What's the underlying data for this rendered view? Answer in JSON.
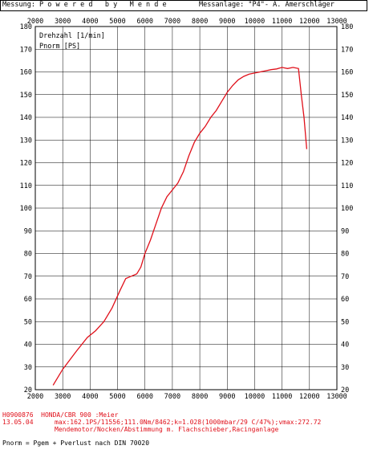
{
  "header": {
    "messung_label": "Messung:",
    "powered_by": "P o w e r e d   b y   M e n d e",
    "messanlage": "Messanlage: \"P4\"- A. Amerschläger"
  },
  "chart_data": {
    "type": "line",
    "title": "",
    "xlabel": "Drehzahl [1/min]",
    "ylabel": "Pnorm [PS]",
    "xlim": [
      2000,
      13000
    ],
    "ylim": [
      20,
      180
    ],
    "x_ticks": [
      "2000",
      "3000",
      "4000",
      "5000",
      "6000",
      "7000",
      "8000",
      "9000",
      "10000",
      "11000",
      "12000",
      "13000"
    ],
    "y_ticks": [
      "20",
      "30",
      "40",
      "50",
      "60",
      "70",
      "80",
      "90",
      "100",
      "110",
      "120",
      "130",
      "140",
      "150",
      "160",
      "170",
      "180"
    ],
    "grid": true,
    "line_color": "#e0101a",
    "series": [
      {
        "name": "Pnorm [PS]",
        "x": [
          2650,
          3000,
          3500,
          3900,
          4200,
          4500,
          4800,
          5100,
          5300,
          5500,
          5700,
          5850,
          6000,
          6200,
          6400,
          6600,
          6800,
          7000,
          7200,
          7400,
          7600,
          7800,
          8000,
          8200,
          8400,
          8600,
          8800,
          9000,
          9200,
          9400,
          9600,
          9800,
          10000,
          10200,
          10400,
          10600,
          10800,
          11000,
          11200,
          11400,
          11600,
          11700,
          11800,
          11900
        ],
        "y": [
          22,
          29,
          37,
          43,
          46,
          50,
          56,
          64,
          69,
          70,
          71,
          74,
          80,
          86,
          93,
          100,
          105,
          108,
          111,
          116,
          123,
          129,
          133,
          136,
          140,
          143,
          147,
          151,
          154,
          156.5,
          158,
          159,
          159.5,
          160,
          160.5,
          161,
          161.3,
          162,
          161.5,
          162,
          161.5,
          150,
          140,
          126
        ]
      }
    ]
  },
  "info": {
    "line1": "H0900876  HONDA/CBR 900 :Meier",
    "line2_date": "13.05.04",
    "line2_rest": "max:162.1PS/11556;111.0Nm/8462;k=1.028(1000mbar/29 C/47%);vmax:272.72",
    "line3": "Mendemotor/Nocken/Abstimmung m. Flachschieber,Racinganlage",
    "footer": "Pnorm = Pgem + Pverlust nach DIN 70020"
  }
}
